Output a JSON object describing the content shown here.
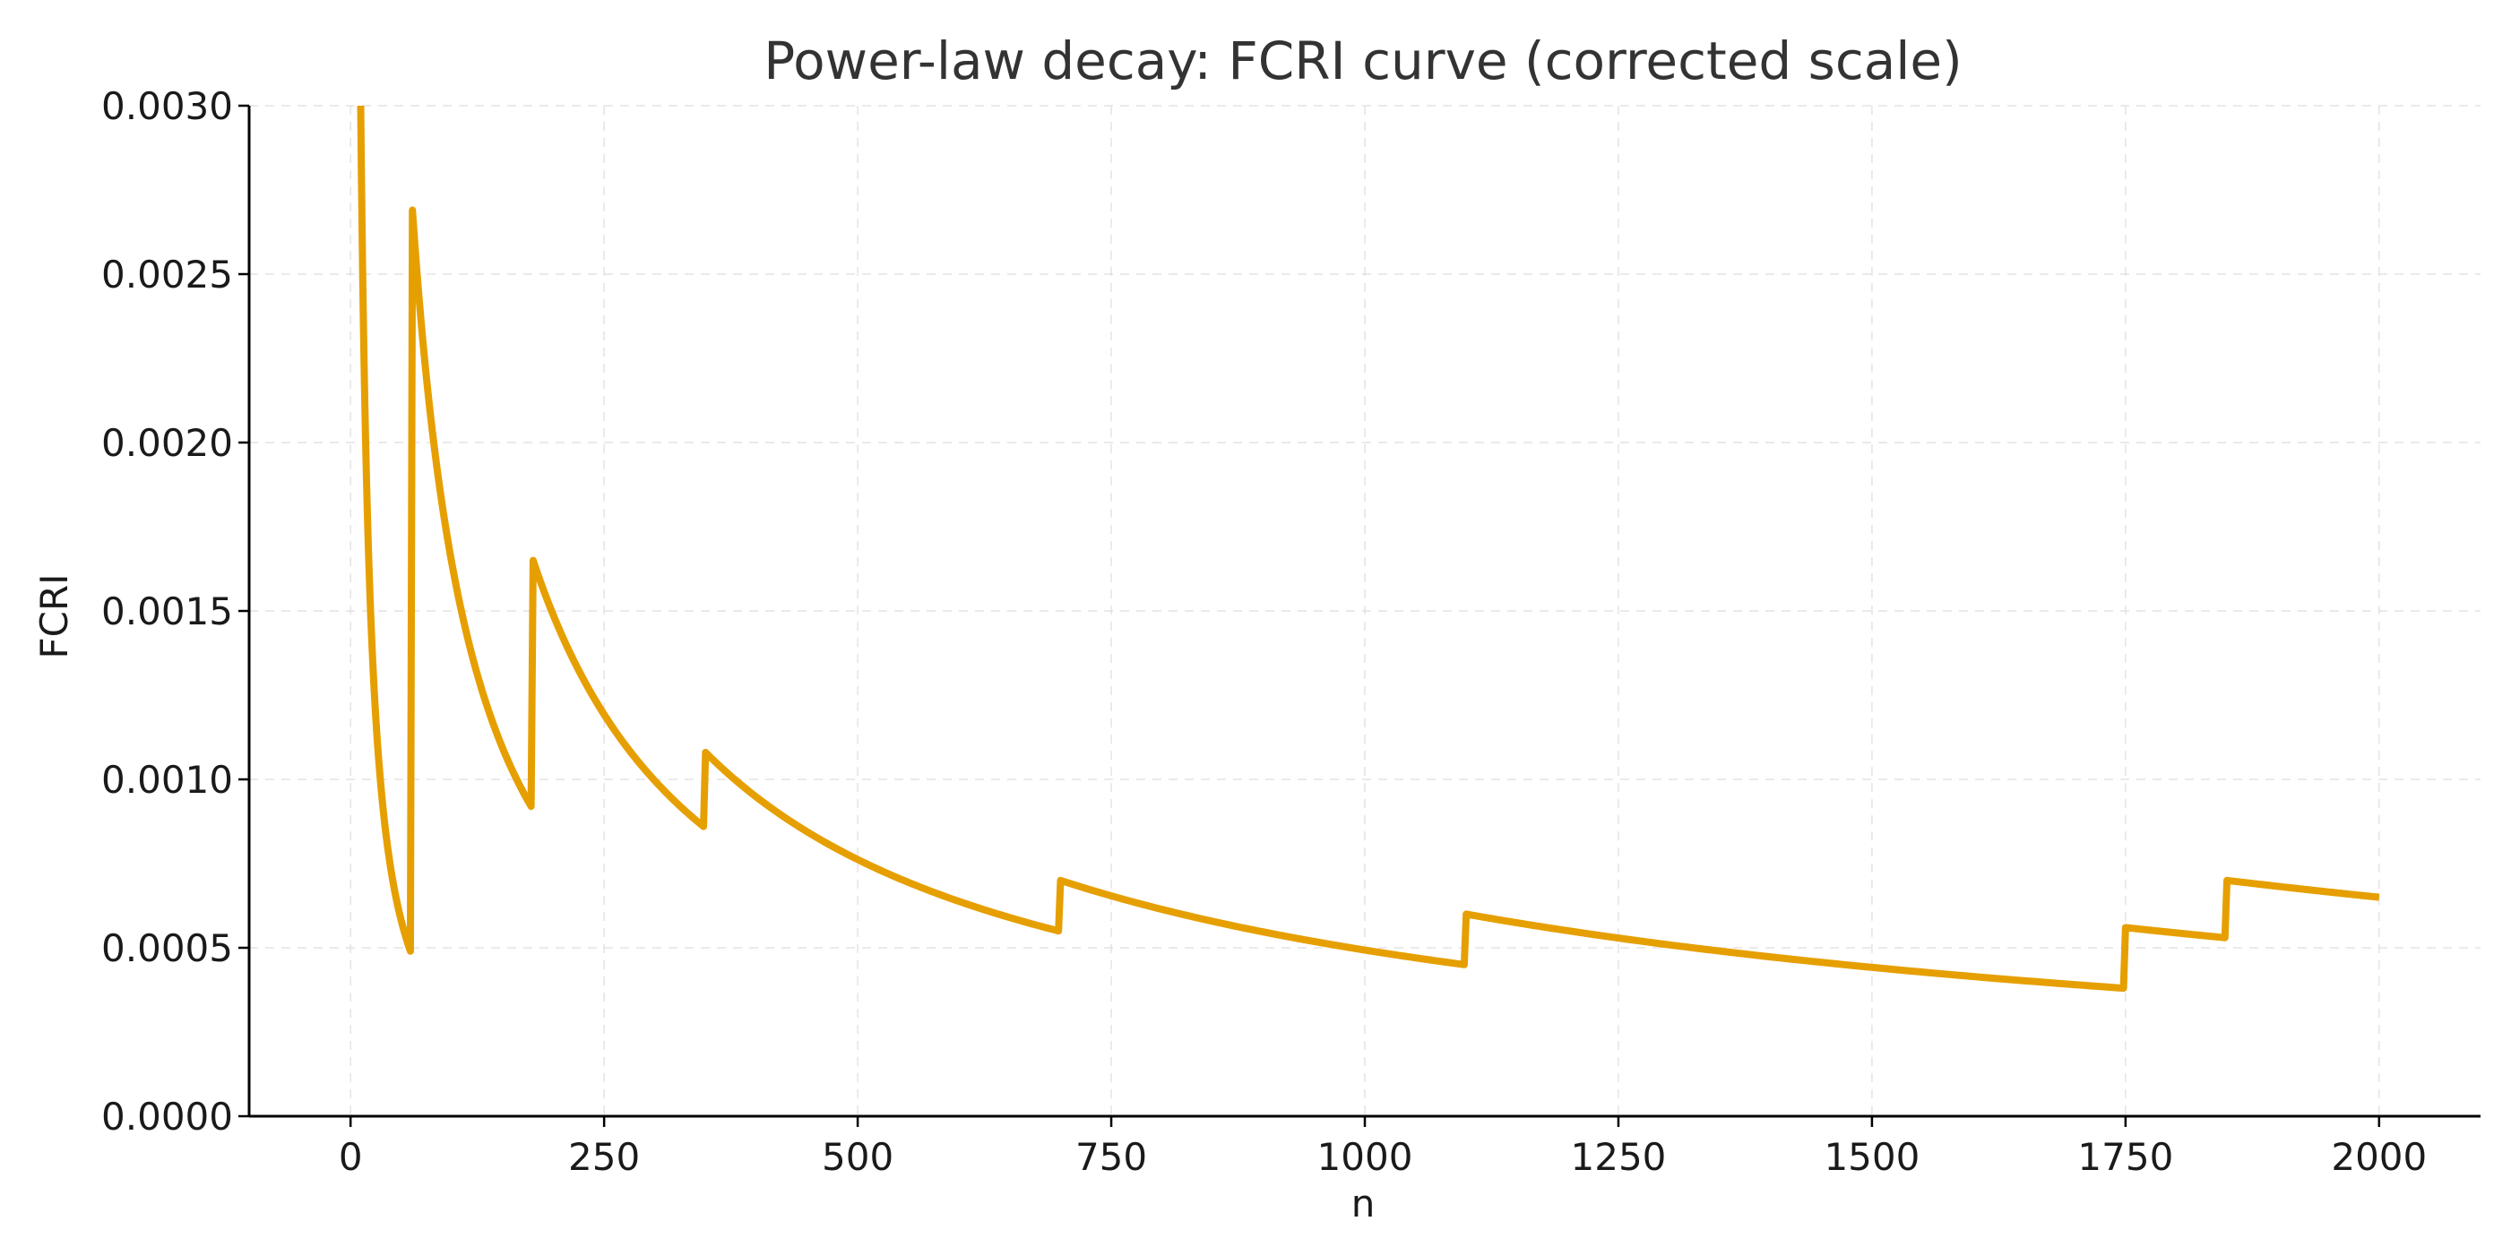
{
  "chart_data": {
    "type": "line",
    "title": "Power-law decay: FCRI curve (corrected scale)",
    "xlabel": "n",
    "ylabel": "FCRI",
    "xlim": [
      -100,
      2100
    ],
    "ylim": [
      0,
      0.003
    ],
    "x_ticks": [
      0,
      250,
      500,
      750,
      1000,
      1250,
      1500,
      1750,
      2000
    ],
    "y_ticks": [
      0.0,
      0.0005,
      0.001,
      0.0015,
      0.002,
      0.0025,
      0.003
    ],
    "x_tick_labels": [
      "0",
      "250",
      "500",
      "750",
      "1000",
      "1250",
      "1500",
      "1750",
      "2000"
    ],
    "y_tick_labels": [
      "0.0000",
      "0.0005",
      "0.0010",
      "0.0015",
      "0.0020",
      "0.0025",
      "0.0030"
    ],
    "grid": true,
    "series": [
      {
        "color": "#E69F00",
        "segments": [
          {
            "x0": 10,
            "x1": 59,
            "y0": 0.003,
            "y1": 0.00049
          },
          {
            "x0": 61,
            "x1": 178,
            "y0": 0.00269,
            "y1": 0.00092
          },
          {
            "x0": 180,
            "x1": 348,
            "y0": 0.00165,
            "y1": 0.00086
          },
          {
            "x0": 350,
            "x1": 698,
            "y0": 0.00108,
            "y1": 0.00055
          },
          {
            "x0": 700,
            "x1": 1098,
            "y0": 0.0007,
            "y1": 0.00045
          },
          {
            "x0": 1100,
            "x1": 1748,
            "y0": 0.0006,
            "y1": 0.00038
          },
          {
            "x0": 1750,
            "x1": 1848,
            "y0": 0.00056,
            "y1": 0.00053
          },
          {
            "x0": 1850,
            "x1": 2000,
            "y0": 0.0007,
            "y1": 0.00065
          }
        ]
      }
    ]
  }
}
